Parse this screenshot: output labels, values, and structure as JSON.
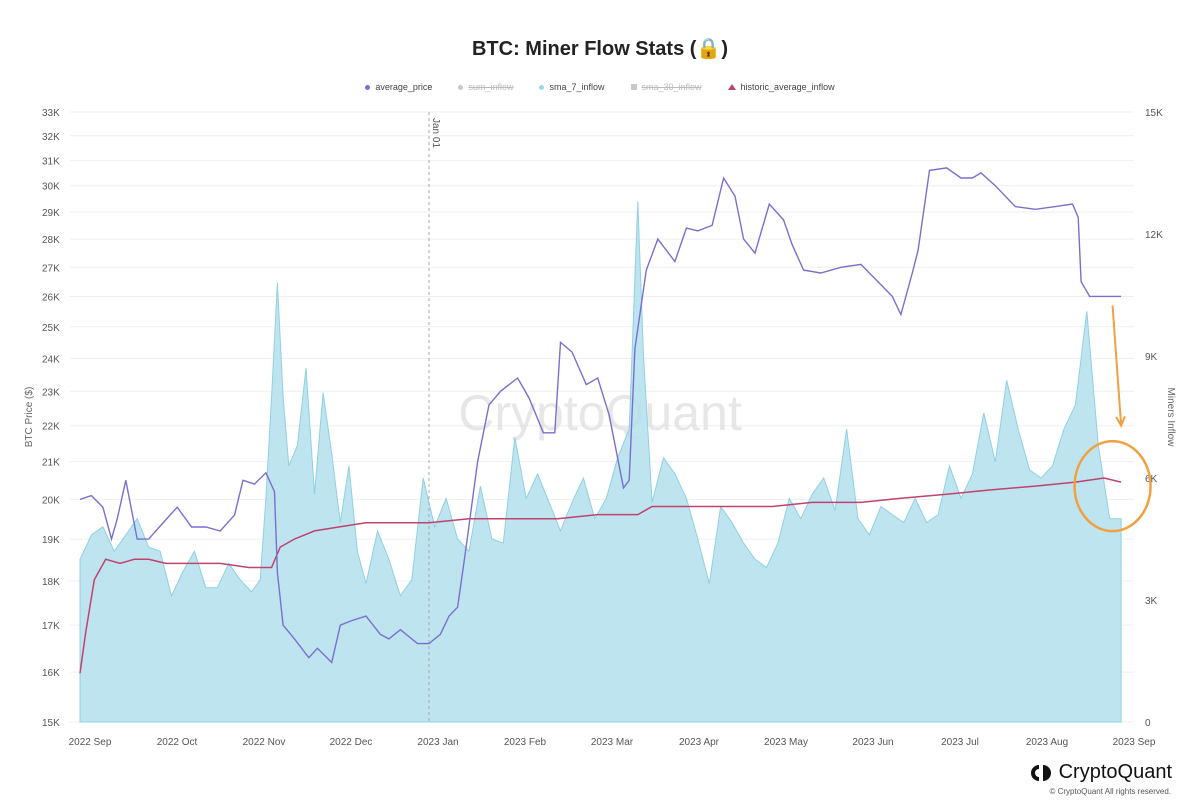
{
  "header": {
    "title": "BTC: Miner Flow Stats (🔒)"
  },
  "legend": [
    {
      "label": "average_price",
      "color": "#7a6fd1",
      "marker": "dot",
      "enabled": true
    },
    {
      "label": "sum_inflow",
      "color": "#c8c8c8",
      "marker": "dot",
      "enabled": false
    },
    {
      "label": "sma_7_inflow",
      "color": "#9dd9e8",
      "marker": "dot",
      "enabled": true
    },
    {
      "label": "sma_30_inflow",
      "color": "#c8c8c8",
      "marker": "square",
      "enabled": false
    },
    {
      "label": "historic_average_inflow",
      "color": "#c0426e",
      "marker": "triangle",
      "enabled": true
    }
  ],
  "watermark": "CryptoQuant",
  "brand": {
    "name": "CryptoQuant",
    "copyright": "© CryptoQuant All rights reserved."
  },
  "chart_data": {
    "type": "line",
    "left_axis": {
      "title": "BTC Price ($)",
      "scale": "log",
      "ticks": [
        "15K",
        "16K",
        "17K",
        "18K",
        "19K",
        "20K",
        "21K",
        "22K",
        "23K",
        "24K",
        "25K",
        "26K",
        "27K",
        "28K",
        "29K",
        "30K",
        "31K",
        "32K",
        "33K"
      ],
      "range": [
        15000,
        33000
      ]
    },
    "right_axis": {
      "title": "Miners Inflow",
      "scale": "linear",
      "ticks": [
        "0",
        "3K",
        "6K",
        "9K",
        "12K",
        "15K"
      ],
      "range": [
        0,
        15000
      ]
    },
    "x_axis": {
      "ticks": [
        "2022 Sep",
        "2022 Oct",
        "2022 Nov",
        "2022 Dec",
        "2023 Jan",
        "2023 Feb",
        "2023 Mar",
        "2023 Apr",
        "2023 May",
        "2023 Jun",
        "2023 Jul",
        "2023 Aug",
        "2023 Sep"
      ],
      "range": [
        "2022-09-01",
        "2023-09-01"
      ]
    },
    "annotations": [
      {
        "type": "vertical_line",
        "x": "2023-01-01",
        "label": "Jan 01"
      },
      {
        "type": "arrow",
        "from": [
          "2023-08-28",
          25700
        ],
        "to": [
          "2023-08-31",
          22000
        ],
        "color": "#f0a040"
      },
      {
        "type": "circle",
        "center": [
          "2023-08-28",
          5800
        ],
        "color": "#f0a040"
      }
    ],
    "series": [
      {
        "name": "average_price",
        "axis": "left",
        "color": "#7a6fd1",
        "x": [
          "2022-09-01",
          "2022-09-05",
          "2022-09-09",
          "2022-09-12",
          "2022-09-14",
          "2022-09-17",
          "2022-09-21",
          "2022-09-25",
          "2022-09-30",
          "2022-10-05",
          "2022-10-10",
          "2022-10-15",
          "2022-10-20",
          "2022-10-25",
          "2022-10-28",
          "2022-11-01",
          "2022-11-05",
          "2022-11-08",
          "2022-11-09",
          "2022-11-11",
          "2022-11-15",
          "2022-11-20",
          "2022-11-23",
          "2022-11-28",
          "2022-12-01",
          "2022-12-05",
          "2022-12-10",
          "2022-12-15",
          "2022-12-18",
          "2022-12-22",
          "2022-12-28",
          "2023-01-01",
          "2023-01-05",
          "2023-01-08",
          "2023-01-11",
          "2023-01-14",
          "2023-01-18",
          "2023-01-22",
          "2023-01-26",
          "2023-02-01",
          "2023-02-05",
          "2023-02-10",
          "2023-02-14",
          "2023-02-16",
          "2023-02-20",
          "2023-02-25",
          "2023-03-01",
          "2023-03-05",
          "2023-03-10",
          "2023-03-12",
          "2023-03-14",
          "2023-03-18",
          "2023-03-22",
          "2023-03-28",
          "2023-04-01",
          "2023-04-05",
          "2023-04-10",
          "2023-04-14",
          "2023-04-18",
          "2023-04-21",
          "2023-04-25",
          "2023-04-30",
          "2023-05-05",
          "2023-05-08",
          "2023-05-12",
          "2023-05-18",
          "2023-05-25",
          "2023-06-01",
          "2023-06-07",
          "2023-06-12",
          "2023-06-15",
          "2023-06-19",
          "2023-06-21",
          "2023-06-25",
          "2023-07-01",
          "2023-07-06",
          "2023-07-10",
          "2023-07-13",
          "2023-07-18",
          "2023-07-25",
          "2023-08-01",
          "2023-08-08",
          "2023-08-14",
          "2023-08-16",
          "2023-08-17",
          "2023-08-20",
          "2023-08-25",
          "2023-08-31"
        ],
        "values": [
          20000,
          20100,
          19800,
          19000,
          19500,
          20500,
          19000,
          19000,
          19400,
          19800,
          19300,
          19300,
          19200,
          19600,
          20500,
          20400,
          20700,
          20200,
          18200,
          17000,
          16700,
          16300,
          16500,
          16200,
          17000,
          17100,
          17200,
          16800,
          16700,
          16900,
          16600,
          16600,
          16800,
          17200,
          17400,
          18800,
          21000,
          22600,
          23000,
          23400,
          22800,
          21800,
          21800,
          24500,
          24200,
          23200,
          23400,
          22300,
          20300,
          20500,
          24300,
          26900,
          28000,
          27200,
          28400,
          28300,
          28500,
          30300,
          29600,
          28000,
          27500,
          29300,
          28700,
          27800,
          26900,
          26800,
          27000,
          27100,
          26500,
          26000,
          25400,
          26800,
          27600,
          30600,
          30700,
          30300,
          30300,
          30500,
          30000,
          29200,
          29100,
          29200,
          29300,
          28800,
          26500,
          26000,
          26000,
          26000
        ]
      },
      {
        "name": "sma_7_inflow",
        "axis": "right",
        "color": "#b3e0ec",
        "x": [
          "2022-09-01",
          "2022-09-05",
          "2022-09-09",
          "2022-09-13",
          "2022-09-17",
          "2022-09-21",
          "2022-09-25",
          "2022-09-29",
          "2022-10-03",
          "2022-10-07",
          "2022-10-11",
          "2022-10-15",
          "2022-10-19",
          "2022-10-23",
          "2022-10-27",
          "2022-10-31",
          "2022-11-03",
          "2022-11-05",
          "2022-11-07",
          "2022-11-09",
          "2022-11-11",
          "2022-11-13",
          "2022-11-16",
          "2022-11-19",
          "2022-11-22",
          "2022-11-25",
          "2022-11-28",
          "2022-12-01",
          "2022-12-04",
          "2022-12-07",
          "2022-12-10",
          "2022-12-14",
          "2022-12-18",
          "2022-12-22",
          "2022-12-26",
          "2022-12-30",
          "2023-01-03",
          "2023-01-07",
          "2023-01-11",
          "2023-01-15",
          "2023-01-19",
          "2023-01-23",
          "2023-01-27",
          "2023-01-31",
          "2023-02-04",
          "2023-02-08",
          "2023-02-12",
          "2023-02-16",
          "2023-02-20",
          "2023-02-24",
          "2023-02-28",
          "2023-03-04",
          "2023-03-08",
          "2023-03-12",
          "2023-03-15",
          "2023-03-17",
          "2023-03-20",
          "2023-03-24",
          "2023-03-28",
          "2023-04-01",
          "2023-04-05",
          "2023-04-09",
          "2023-04-13",
          "2023-04-17",
          "2023-04-21",
          "2023-04-25",
          "2023-04-29",
          "2023-05-03",
          "2023-05-07",
          "2023-05-11",
          "2023-05-15",
          "2023-05-19",
          "2023-05-23",
          "2023-05-27",
          "2023-05-31",
          "2023-06-04",
          "2023-06-08",
          "2023-06-12",
          "2023-06-16",
          "2023-06-20",
          "2023-06-24",
          "2023-06-28",
          "2023-07-02",
          "2023-07-06",
          "2023-07-10",
          "2023-07-14",
          "2023-07-18",
          "2023-07-22",
          "2023-07-26",
          "2023-07-30",
          "2023-08-03",
          "2023-08-07",
          "2023-08-11",
          "2023-08-15",
          "2023-08-19",
          "2023-08-23",
          "2023-08-27",
          "2023-08-31"
        ],
        "values": [
          4000,
          4600,
          4800,
          4200,
          4600,
          5000,
          4300,
          4200,
          3100,
          3700,
          4200,
          3300,
          3300,
          3900,
          3500,
          3200,
          3500,
          5500,
          8000,
          10800,
          8000,
          6300,
          6800,
          8700,
          5600,
          8100,
          6600,
          4900,
          6300,
          4200,
          3400,
          4700,
          4000,
          3100,
          3500,
          6000,
          4800,
          5500,
          4500,
          4200,
          5800,
          4500,
          4400,
          7000,
          5500,
          6100,
          5400,
          4700,
          5400,
          6000,
          5000,
          5500,
          6500,
          7200,
          12800,
          9000,
          5400,
          6500,
          6100,
          5500,
          4500,
          3400,
          5300,
          4900,
          4400,
          4000,
          3800,
          4400,
          5500,
          5000,
          5600,
          6000,
          5200,
          7200,
          5000,
          4600,
          5300,
          5100,
          4900,
          5500,
          4900,
          5100,
          6300,
          5500,
          6100,
          7600,
          6400,
          8400,
          7200,
          6200,
          6000,
          6300,
          7200,
          7800,
          10100,
          6800,
          5000,
          5000
        ]
      },
      {
        "name": "historic_average_inflow",
        "axis": "right",
        "color": "#c0426e",
        "x": [
          "2022-09-01",
          "2022-09-03",
          "2022-09-06",
          "2022-09-10",
          "2022-09-15",
          "2022-09-20",
          "2022-09-25",
          "2022-10-01",
          "2022-10-10",
          "2022-10-20",
          "2022-10-30",
          "2022-11-07",
          "2022-11-10",
          "2022-11-15",
          "2022-11-22",
          "2022-12-01",
          "2022-12-10",
          "2022-12-20",
          "2023-01-01",
          "2023-01-15",
          "2023-02-01",
          "2023-02-15",
          "2023-03-01",
          "2023-03-15",
          "2023-03-20",
          "2023-04-01",
          "2023-04-15",
          "2023-05-01",
          "2023-05-15",
          "2023-06-01",
          "2023-06-15",
          "2023-07-01",
          "2023-07-15",
          "2023-08-01",
          "2023-08-15",
          "2023-08-25",
          "2023-08-31"
        ],
        "values": [
          1200,
          2200,
          3500,
          4000,
          3900,
          4000,
          4000,
          3900,
          3900,
          3900,
          3800,
          3800,
          4300,
          4500,
          4700,
          4800,
          4900,
          4900,
          4900,
          5000,
          5000,
          5000,
          5100,
          5100,
          5300,
          5300,
          5300,
          5300,
          5400,
          5400,
          5500,
          5600,
          5700,
          5800,
          5900,
          6000,
          5900
        ]
      }
    ]
  }
}
